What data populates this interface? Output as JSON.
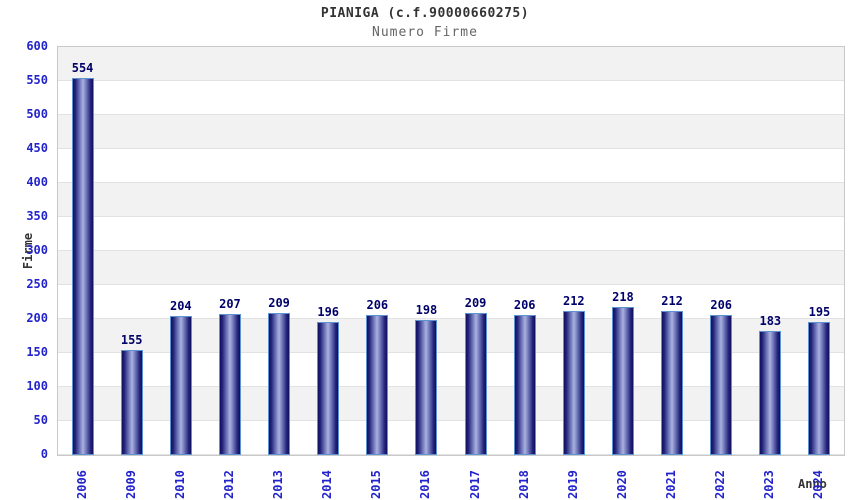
{
  "chart_data": {
    "type": "bar",
    "title": "PIANIGA (c.f.90000660275)",
    "subtitle": "Numero Firme",
    "xlabel": "Anno",
    "ylabel": "Firme",
    "categories": [
      "2006",
      "2009",
      "2010",
      "2012",
      "2013",
      "2014",
      "2015",
      "2016",
      "2017",
      "2018",
      "2019",
      "2020",
      "2021",
      "2022",
      "2023",
      "2024"
    ],
    "values": [
      554,
      155,
      204,
      207,
      209,
      196,
      206,
      198,
      209,
      206,
      212,
      218,
      212,
      206,
      183,
      195
    ],
    "ylim": [
      0,
      600
    ],
    "ytick_step": 50,
    "grid": "horizontal gridlines with alternating gray/white bands, gray band at top",
    "legend": "none",
    "colors": {
      "axis_label_blue": "#2323cc",
      "value_label_navy": "#00006a",
      "bar_dark": "#10105f",
      "bar_light": "#aab1e0",
      "bar_border": "#5e93d2",
      "band_gray": "#f2f2f2",
      "band_white": "#ffffff",
      "grid_line": "#e2e2e2",
      "plot_border": "#c9c9c9",
      "title_color": "#333333",
      "subtitle_color": "#666666",
      "axis_title_color": "#333333"
    }
  }
}
